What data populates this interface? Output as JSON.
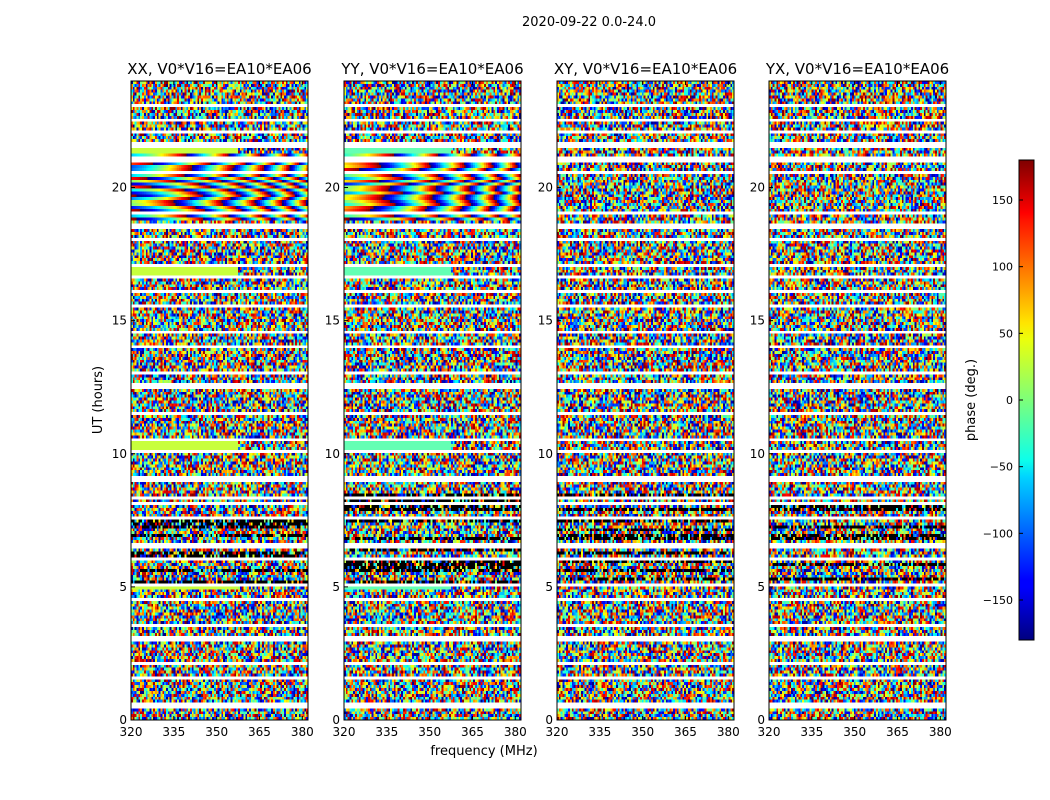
{
  "chart_data": {
    "type": "heatmap",
    "suptitle": "2020-09-22 0.0-24.0",
    "xlabel": "frequency (MHz)",
    "ylabel": "UT (hours)",
    "xlim": [
      320,
      382
    ],
    "ylim": [
      0,
      24
    ],
    "xticks": [
      320,
      335,
      350,
      365,
      380
    ],
    "yticks": [
      0,
      5,
      10,
      15,
      20
    ],
    "colorbar": {
      "label": "phase (deg.)",
      "range": [
        -180,
        180
      ],
      "ticks": [
        -150,
        -100,
        -50,
        0,
        50,
        100,
        150
      ],
      "colormap": "jet"
    },
    "panels": [
      {
        "title": "XX, V0*V16=EA10*EA06",
        "pol": "XX"
      },
      {
        "title": "YY, V0*V16=EA10*EA06",
        "pol": "YY"
      },
      {
        "title": "XY, V0*V16=EA10*EA06",
        "pol": "XY"
      },
      {
        "title": "YX, V0*V16=EA10*EA06",
        "pol": "YX"
      }
    ],
    "flagged_rows_ut": [
      0.55,
      1.55,
      2.1,
      2.15,
      3.05,
      3.55,
      4.55,
      5.05,
      6.05,
      6.55,
      7.55,
      8.1,
      8.3,
      9.05,
      10.05,
      10.55,
      11.55,
      12.55,
      13.05,
      14.05,
      14.55,
      15.55,
      16.05,
      16.6,
      17.05,
      18.05,
      18.55,
      19.05,
      20.55,
      21.05,
      21.6,
      22.05,
      22.55,
      23.05
    ]
  }
}
